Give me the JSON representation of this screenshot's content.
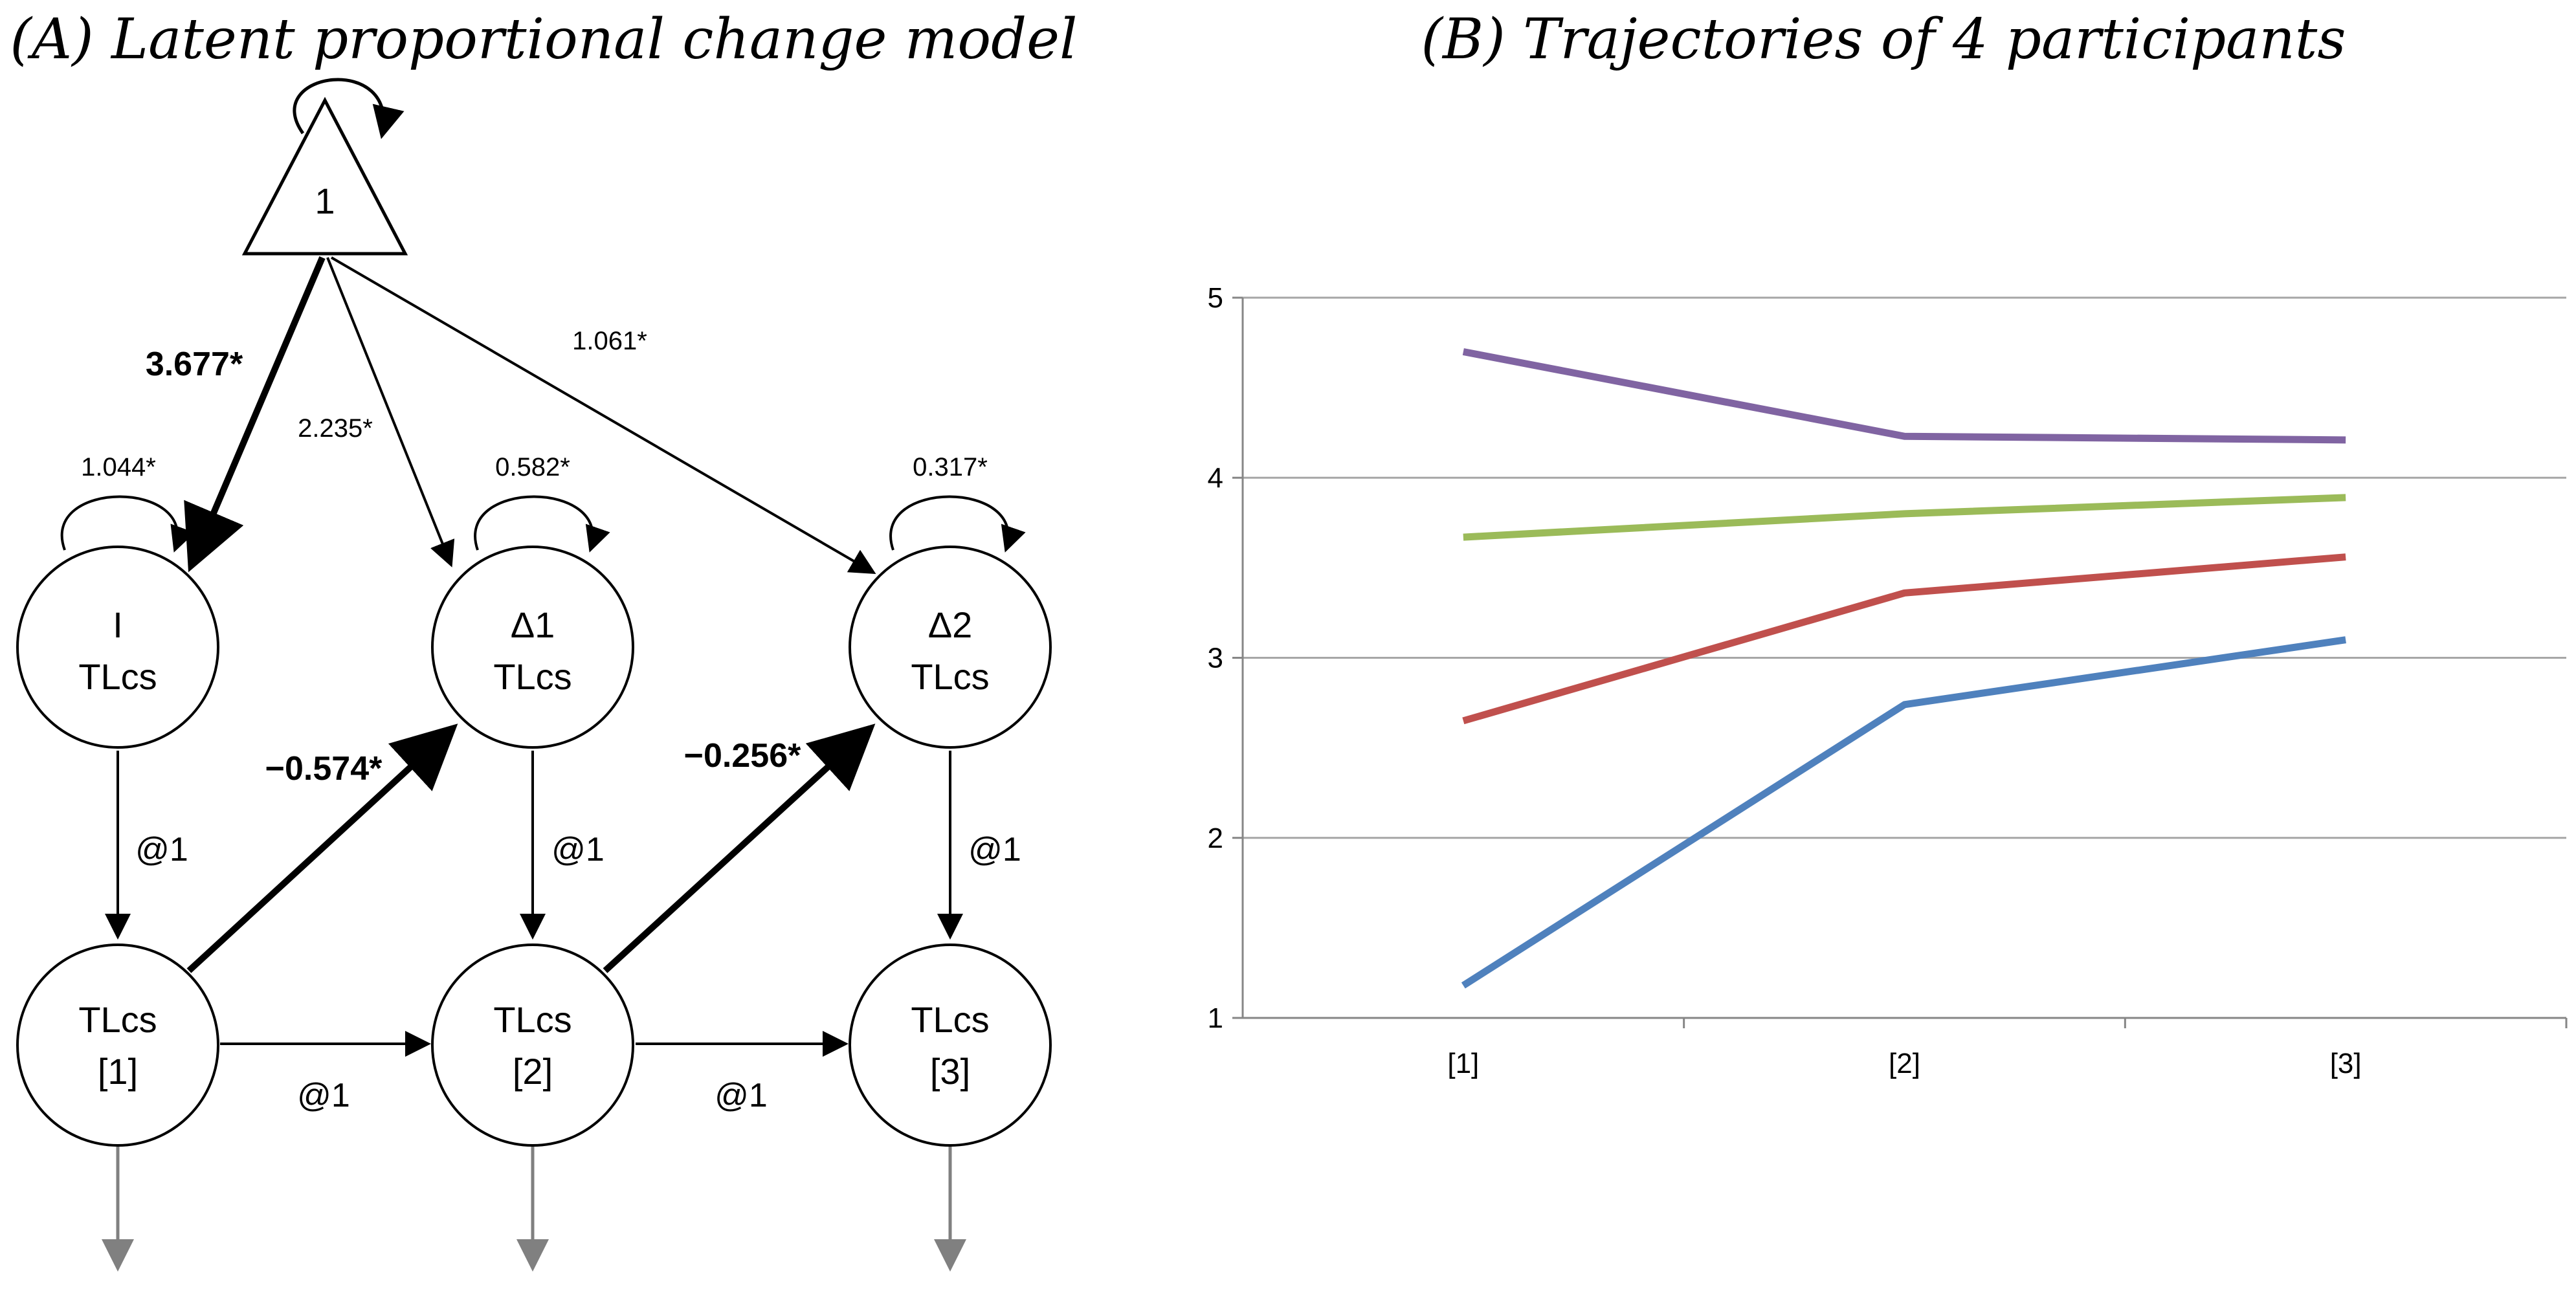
{
  "panel_a": {
    "title": "(A) Latent proportional change model",
    "constant_label": "1",
    "nodes": {
      "intercept": {
        "line1": "I",
        "line2": "TLcs"
      },
      "delta1": {
        "line1": "Δ1",
        "line2": "TLcs"
      },
      "delta2": {
        "line1": "Δ2",
        "line2": "TLcs"
      },
      "obs1": {
        "line1": "TLcs",
        "line2": "[1]"
      },
      "obs2": {
        "line1": "TLcs",
        "line2": "[2]"
      },
      "obs3": {
        "line1": "TLcs",
        "line2": "[3]"
      }
    },
    "paths": {
      "const_to_intercept": "3.677*",
      "const_to_delta1": "2.235*",
      "const_to_delta2": "1.061*",
      "var_intercept": "1.044*",
      "var_delta1": "0.582*",
      "var_delta2": "0.317*",
      "prop_change_1": "−0.574*",
      "prop_change_2": "−0.256*",
      "fixed_intercept_obs1": "@1",
      "fixed_delta1_obs2": "@1",
      "fixed_delta2_obs3": "@1",
      "fixed_obs1_obs2": "@1",
      "fixed_obs2_obs3": "@1"
    }
  },
  "panel_b": {
    "title": "(B) Trajectories of 4 participants"
  },
  "chart_data": {
    "type": "line",
    "categories": [
      "[1]",
      "[2]",
      "[3]"
    ],
    "yticks": [
      "1",
      "2",
      "3",
      "4",
      "5"
    ],
    "ylim": [
      1,
      5
    ],
    "grid": true,
    "legend": "none",
    "series": [
      {
        "color": "#8064A2",
        "values": [
          4.7,
          4.23,
          4.21
        ]
      },
      {
        "color": "#9BBB59",
        "values": [
          3.67,
          3.8,
          3.89
        ]
      },
      {
        "color": "#C0504D",
        "values": [
          2.65,
          3.36,
          3.56
        ]
      },
      {
        "color": "#4F81BD",
        "values": [
          1.18,
          2.74,
          3.1
        ]
      }
    ]
  }
}
